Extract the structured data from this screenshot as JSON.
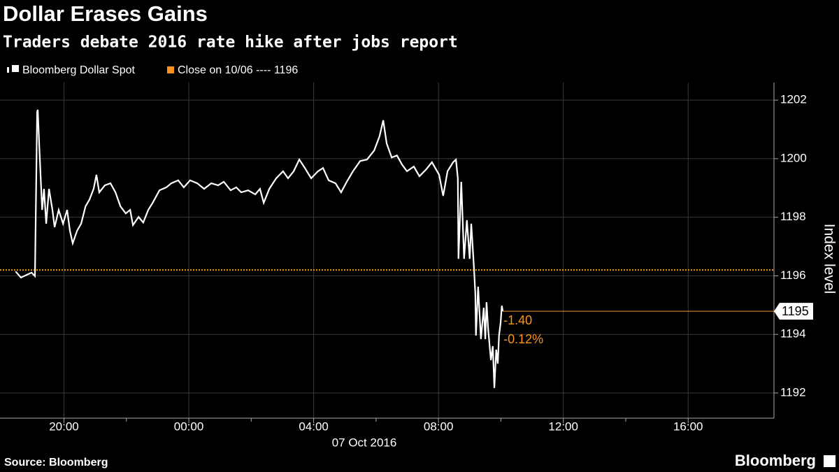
{
  "chart_data": {
    "type": "line",
    "title": "Dollar Erases Gains",
    "subtitle": "Traders debate 2016 rate hike after jobs report",
    "ylabel": "Index level",
    "x_date_label": "07 Oct 2016",
    "source": "Source: Bloomberg",
    "brand": "Bloomberg",
    "x": [
      -5.55,
      -5.38,
      -5.04,
      -4.93,
      -4.86,
      -4.84,
      -4.79,
      -4.7,
      -4.64,
      -4.57,
      -4.48,
      -4.37,
      -4.3,
      -4.17,
      -4.03,
      -3.9,
      -3.81,
      -3.72,
      -3.58,
      -3.45,
      -3.31,
      -3.18,
      -3.05,
      -2.96,
      -2.87,
      -2.69,
      -2.51,
      -2.35,
      -2.19,
      -2.02,
      -1.88,
      -1.79,
      -1.61,
      -1.46,
      -1.3,
      -1.16,
      -0.94,
      -0.72,
      -0.56,
      -0.34,
      -0.16,
      0.04,
      0.27,
      0.49,
      0.72,
      0.94,
      1.12,
      1.34,
      1.52,
      1.68,
      1.9,
      2.13,
      2.28,
      2.4,
      2.58,
      2.8,
      3.02,
      3.18,
      3.36,
      3.54,
      3.72,
      3.92,
      4.14,
      4.3,
      4.48,
      4.7,
      4.88,
      5.06,
      5.26,
      5.49,
      5.71,
      5.94,
      6.11,
      6.23,
      6.34,
      6.5,
      6.67,
      6.83,
      6.99,
      7.21,
      7.39,
      7.61,
      7.79,
      8.02,
      8.15,
      8.29,
      8.47,
      8.56,
      8.62,
      8.64,
      8.73,
      8.82,
      8.91,
      9.0,
      9.05,
      9.14,
      9.18,
      9.2,
      9.27,
      9.36,
      9.45,
      9.5,
      9.54,
      9.59,
      9.68,
      9.74,
      9.79,
      9.85,
      9.9,
      9.94,
      9.99,
      10.03,
      10.06
    ],
    "series": [
      {
        "name": "Bloomberg Dollar Spot",
        "color": "#ffffff",
        "values": [
          1196.15,
          1195.94,
          1196.11,
          1195.99,
          1201.59,
          1201.67,
          1200.4,
          1198.25,
          1198.97,
          1197.78,
          1198.97,
          1198.25,
          1197.66,
          1198.25,
          1197.78,
          1198.25,
          1197.54,
          1197.11,
          1197.54,
          1197.78,
          1198.37,
          1198.61,
          1198.97,
          1199.45,
          1198.85,
          1199.09,
          1199.16,
          1198.85,
          1198.37,
          1198.13,
          1198.25,
          1197.73,
          1198.01,
          1197.82,
          1198.25,
          1198.49,
          1198.92,
          1199.02,
          1199.16,
          1199.26,
          1199.02,
          1199.26,
          1199.16,
          1198.97,
          1199.16,
          1199.09,
          1199.21,
          1198.92,
          1199.02,
          1198.85,
          1198.92,
          1198.78,
          1198.97,
          1198.49,
          1198.97,
          1199.33,
          1199.57,
          1199.33,
          1199.57,
          1199.97,
          1199.68,
          1199.33,
          1199.57,
          1199.68,
          1199.26,
          1199.16,
          1198.85,
          1199.21,
          1199.57,
          1199.92,
          1199.97,
          1200.28,
          1200.76,
          1201.31,
          1200.52,
          1200.04,
          1200.11,
          1199.8,
          1199.57,
          1199.73,
          1199.4,
          1199.64,
          1199.88,
          1199.45,
          1198.73,
          1199.57,
          1199.88,
          1199.97,
          1199.33,
          1196.58,
          1199.21,
          1196.58,
          1197.9,
          1196.58,
          1197.78,
          1196.22,
          1195.39,
          1193.96,
          1195.63,
          1193.84,
          1194.91,
          1193.84,
          1195.1,
          1194.2,
          1193.12,
          1193.6,
          1192.17,
          1193.48,
          1193.0,
          1193.96,
          1194.39,
          1194.98,
          1194.79
        ]
      }
    ],
    "close_line": {
      "label": "Close on 10/06 ---- 1196",
      "value": 1196.2,
      "color": "#f7931e"
    },
    "last_value_label": "1195",
    "change_labels": [
      "-1.40",
      "-0.12%"
    ],
    "xlim": [
      -6.05,
      18.75
    ],
    "ylim": [
      1191.14,
      1202.6
    ],
    "xticks": [
      {
        "value": -4,
        "label": "20:00"
      },
      {
        "value": 0,
        "label": "00:00"
      },
      {
        "value": 4,
        "label": "04:00"
      },
      {
        "value": 8,
        "label": "08:00"
      },
      {
        "value": 12,
        "label": "12:00"
      },
      {
        "value": 16,
        "label": "16:00"
      }
    ],
    "xminorticks": [
      -2,
      2,
      6,
      10,
      14
    ],
    "yticks": [
      1192,
      1194,
      1196,
      1198,
      1200,
      1202
    ],
    "grid": true
  }
}
